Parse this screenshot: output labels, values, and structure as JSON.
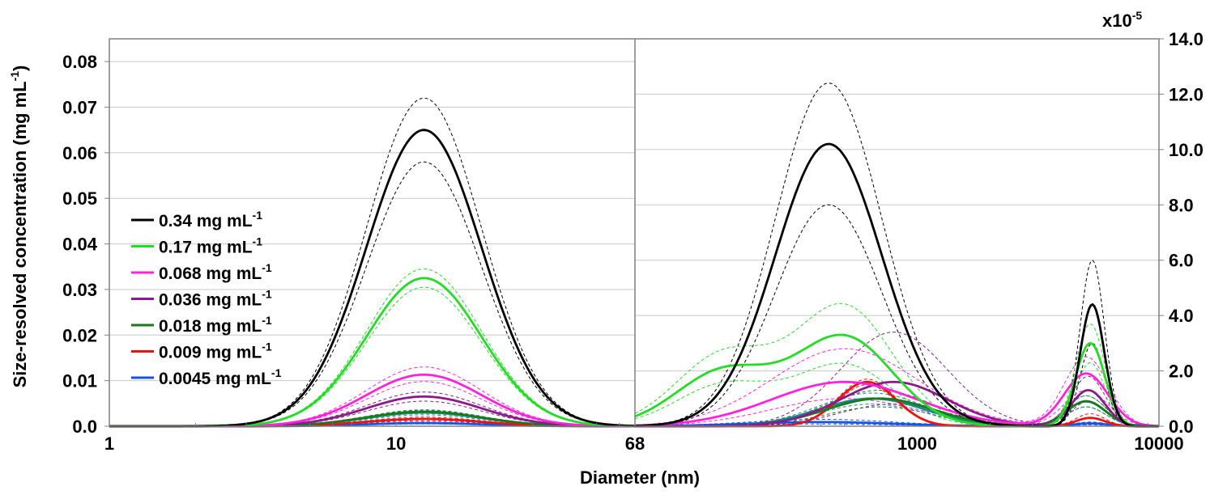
{
  "chart_data": {
    "type": "line",
    "ylabel": "Size-resolved concentration (mg mL",
    "ylabel_sup": "-1",
    "ylabel_close": ")",
    "xlabel": "Diameter (nm)",
    "multiplier_label": "x10",
    "multiplier_sup": "-5",
    "x_ticks": [
      "1",
      "10",
      "68",
      "1000",
      "10000"
    ],
    "left_panel": {
      "x_range": [
        1,
        68
      ],
      "x_scale": "log",
      "y_range": [
        0,
        0.085
      ],
      "y_ticks": [
        "0.0",
        "0.01",
        "0.02",
        "0.03",
        "0.04",
        "0.05",
        "0.06",
        "0.07",
        "0.08"
      ],
      "y_tick_values": [
        0,
        0.01,
        0.02,
        0.03,
        0.04,
        0.05,
        0.06,
        0.07,
        0.08
      ]
    },
    "right_panel": {
      "x_range": [
        68,
        10000
      ],
      "x_scale": "log",
      "y_range": [
        0,
        14.0
      ],
      "y_ticks": [
        "0.0",
        "2.0",
        "4.0",
        "6.0",
        "8.0",
        "10.0",
        "12.0",
        "14.0"
      ],
      "y_tick_values": [
        0,
        2,
        4,
        6,
        8,
        10,
        12,
        14
      ]
    },
    "grid": true,
    "legend_position": "left",
    "series": [
      {
        "name": "0.34 mg mL",
        "sup": "-1",
        "color": "#000000",
        "left": {
          "peak_d": 12.5,
          "peak": 0.065,
          "width": 0.2,
          "upper": 0.072,
          "lower": 0.058
        },
        "right_peaks": [
          {
            "d": 430,
            "h": 10.2,
            "w": 0.22,
            "upper": 12.4,
            "lower": 8.0
          },
          {
            "d": 5300,
            "h": 4.4,
            "w": 0.05,
            "upper": 6.0,
            "lower": 3.0
          }
        ]
      },
      {
        "name": "0.17 mg mL",
        "sup": "-1",
        "color": "#22dd22",
        "left": {
          "peak_d": 12.5,
          "peak": 0.0325,
          "width": 0.2,
          "upper": 0.0345,
          "lower": 0.0305
        },
        "right_peaks": [
          {
            "d": 160,
            "h": 2.0,
            "w": 0.2,
            "upper": 2.6,
            "lower": 1.5
          },
          {
            "d": 500,
            "h": 3.2,
            "w": 0.2,
            "upper": 4.3,
            "lower": 2.2
          },
          {
            "d": 5200,
            "h": 3.0,
            "w": 0.06,
            "upper": 3.7,
            "lower": 2.3
          }
        ]
      },
      {
        "name": "0.068 mg mL",
        "sup": "-1",
        "color": "#ff22dd",
        "left": {
          "peak_d": 12.5,
          "peak": 0.0113,
          "width": 0.2,
          "upper": 0.013,
          "lower": 0.0098
        },
        "right_peaks": [
          {
            "d": 500,
            "h": 1.6,
            "w": 0.3,
            "upper": 2.8,
            "lower": 1.0
          },
          {
            "d": 5000,
            "h": 1.9,
            "w": 0.09,
            "upper": 2.5,
            "lower": 1.3
          }
        ]
      },
      {
        "name": "0.036 mg mL",
        "sup": "-1",
        "color": "#8b1a8b",
        "left": {
          "peak_d": 12.5,
          "peak": 0.0065,
          "width": 0.2,
          "upper": 0.0075,
          "lower": 0.0055
        },
        "right_peaks": [
          {
            "d": 800,
            "h": 1.6,
            "w": 0.22,
            "upper": 3.4,
            "lower": 0.8
          },
          {
            "d": 5100,
            "h": 1.3,
            "w": 0.07,
            "upper": 1.8,
            "lower": 0.9
          }
        ]
      },
      {
        "name": "0.018 mg mL",
        "sup": "-1",
        "color": "#1a7a1a",
        "left": {
          "peak_d": 12.5,
          "peak": 0.0032,
          "width": 0.2,
          "upper": 0.0036,
          "lower": 0.0028
        },
        "right_peaks": [
          {
            "d": 700,
            "h": 1.0,
            "w": 0.22,
            "upper": 1.3,
            "lower": 0.7
          },
          {
            "d": 5000,
            "h": 0.9,
            "w": 0.08,
            "upper": 1.1,
            "lower": 0.7
          }
        ]
      },
      {
        "name": "0.009 mg mL",
        "sup": "-1",
        "color": "#ee1111",
        "left": {
          "peak_d": 12.5,
          "peak": 0.0016,
          "width": 0.2,
          "upper": 0.002,
          "lower": 0.0012
        },
        "right_peaks": [
          {
            "d": 620,
            "h": 1.6,
            "w": 0.12,
            "upper": 1.7,
            "lower": 1.5
          },
          {
            "d": 5200,
            "h": 0.3,
            "w": 0.06,
            "upper": 0.45,
            "lower": 0.15
          }
        ]
      },
      {
        "name": "0.0045 mg mL",
        "sup": "-1",
        "color": "#1155ee",
        "left": {
          "peak_d": 12.5,
          "peak": 0.0007,
          "width": 0.2,
          "upper": 0.0009,
          "lower": 0.0005
        },
        "right_peaks": [
          {
            "d": 400,
            "h": 0.15,
            "w": 0.3,
            "upper": 0.25,
            "lower": 0.08
          },
          {
            "d": 5200,
            "h": 0.1,
            "w": 0.07,
            "upper": 0.15,
            "lower": 0.05
          }
        ]
      }
    ],
    "extra_series": [
      {
        "color": "#1a8a8a",
        "left": {
          "peak_d": 12.5,
          "peak": 0.003,
          "width": 0.2,
          "upper": 0.0035,
          "lower": 0.0025
        },
        "right_peaks": [
          {
            "d": 650,
            "h": 1.0,
            "w": 0.22,
            "upper": 1.2,
            "lower": 0.8
          },
          {
            "d": 5000,
            "h": 0.9,
            "w": 0.08,
            "upper": 1.1,
            "lower": 0.7
          }
        ]
      }
    ]
  }
}
